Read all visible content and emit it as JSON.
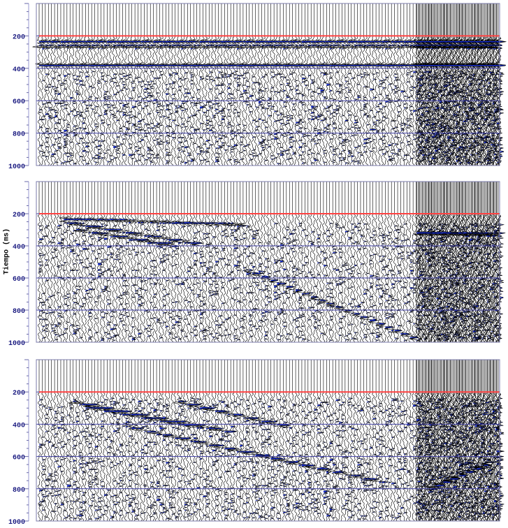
{
  "chart_data": [
    {
      "type": "seismic-wiggle",
      "ylabel": "Tiempo (ms)",
      "y_ticks": [
        "200",
        "400",
        "600",
        "800",
        "1000"
      ],
      "ylim": [
        0,
        1000
      ],
      "y_inverted": true,
      "grid_lines_y": [
        200,
        400,
        600,
        800,
        1000
      ],
      "red_line_y": 200,
      "wiggle_color": "#000000",
      "fill_color": "#1a2fd0",
      "red_color": "#ff4040",
      "grid_color": "#3a3aa0",
      "dense_region_start_fraction": 0.82,
      "events": [
        {
          "kind": "band",
          "t": 235,
          "x0": 0.0,
          "x1": 1.0
        },
        {
          "kind": "band",
          "t": 265,
          "x0": 0.0,
          "x1": 1.0
        },
        {
          "kind": "band",
          "t": 380,
          "x0": 0.0,
          "x1": 1.0
        },
        {
          "kind": "scatter",
          "t0": 420,
          "t1": 990,
          "density": 0.07
        }
      ]
    },
    {
      "type": "seismic-wiggle",
      "ylabel": "Tiempo (ms)",
      "y_ticks": [
        "200",
        "400",
        "600",
        "800",
        "1000"
      ],
      "ylim": [
        0,
        1000
      ],
      "y_inverted": true,
      "grid_lines_y": [
        200,
        400,
        600,
        800,
        1000
      ],
      "red_line_y": 200,
      "wiggle_color": "#000000",
      "fill_color": "#1a2fd0",
      "red_color": "#ff4040",
      "grid_color": "#3a3aa0",
      "dense_region_start_fraction": 0.82,
      "events": [
        {
          "kind": "line",
          "x0": 0.05,
          "t0": 230,
          "x1": 0.45,
          "t1": 270
        },
        {
          "kind": "line",
          "x0": 0.05,
          "t0": 250,
          "x1": 0.35,
          "t1": 390
        },
        {
          "kind": "line",
          "x0": 0.08,
          "t0": 300,
          "x1": 0.3,
          "t1": 400
        },
        {
          "kind": "line",
          "x0": 0.45,
          "t0": 550,
          "x1": 0.82,
          "t1": 980
        },
        {
          "kind": "line",
          "x0": 0.82,
          "t0": 320,
          "x1": 1.0,
          "t1": 330
        },
        {
          "kind": "scatter",
          "t0": 260,
          "t1": 990,
          "density": 0.05
        }
      ]
    },
    {
      "type": "seismic-wiggle",
      "ylabel": "Tiempo (ms)",
      "y_ticks": [
        "200",
        "400",
        "600",
        "800",
        "1000"
      ],
      "ylim": [
        0,
        1000
      ],
      "y_inverted": true,
      "grid_lines_y": [
        200,
        400,
        600,
        800,
        1000
      ],
      "red_line_y": 200,
      "wiggle_color": "#000000",
      "fill_color": "#1a2fd0",
      "red_color": "#ff4040",
      "grid_color": "#3a3aa0",
      "dense_region_start_fraction": 0.82,
      "events": [
        {
          "kind": "line",
          "x0": 0.07,
          "t0": 260,
          "x1": 0.42,
          "t1": 450
        },
        {
          "kind": "line",
          "x0": 0.1,
          "t0": 290,
          "x1": 0.35,
          "t1": 420
        },
        {
          "kind": "line",
          "x0": 0.2,
          "t0": 420,
          "x1": 0.75,
          "t1": 760
        },
        {
          "kind": "line",
          "x0": 0.3,
          "t0": 260,
          "x1": 0.55,
          "t1": 420
        },
        {
          "kind": "line",
          "x0": 0.85,
          "t0": 800,
          "x1": 0.98,
          "t1": 640
        },
        {
          "kind": "scatter",
          "t0": 240,
          "t1": 990,
          "density": 0.06
        }
      ]
    }
  ]
}
